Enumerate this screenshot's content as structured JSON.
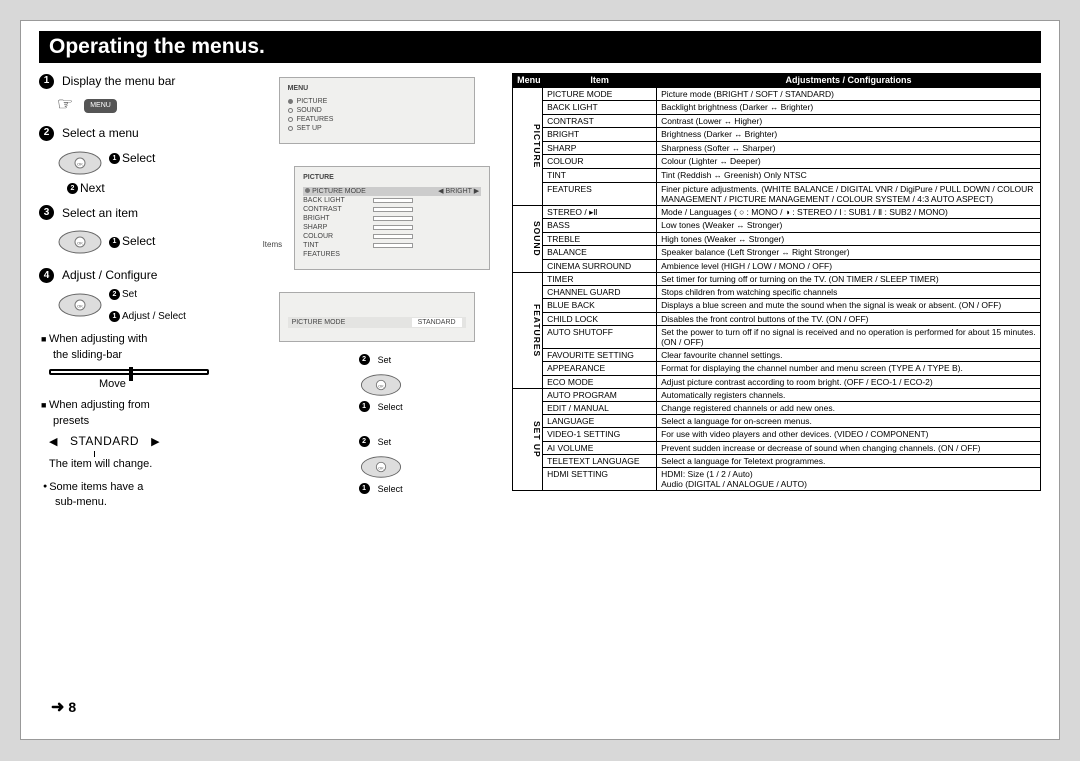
{
  "title": "Operating the menus.",
  "page_num": "8",
  "steps": {
    "s1": "Display the menu bar",
    "menu_chip": "MENU",
    "s2": "Select a menu",
    "s2a": "Select",
    "s2b": "Next",
    "s3": "Select an item",
    "s3a": "Select",
    "s4": "Adjust / Configure",
    "s4a": "Set",
    "s4b": "Adjust / Select",
    "n1a": "When adjusting with",
    "n1b": "the sliding-bar",
    "move": "Move",
    "n2a": "When adjusting from",
    "n2b": "presets",
    "preset": "STANDARD",
    "preset_note": "The item will change.",
    "n3a": "Some items have a",
    "n3b": "sub-menu."
  },
  "mid_labels": {
    "items": "Items",
    "set": "Set",
    "select": "Select"
  },
  "screen1": {
    "hdr": "MENU",
    "rows": [
      "PICTURE",
      "SOUND",
      "FEATURES",
      "SET UP"
    ]
  },
  "screen2": {
    "hdr": "PICTURE",
    "sel_item": "PICTURE MODE",
    "sel_val": "BRIGHT",
    "rows": [
      "BACK LIGHT",
      "CONTRAST",
      "BRIGHT",
      "SHARP",
      "COLOUR",
      "TINT",
      "FEATURES"
    ]
  },
  "screen3": {
    "item": "PICTURE MODE",
    "val": "STANDARD"
  },
  "table": {
    "headers": [
      "Menu",
      "Item",
      "Adjustments / Configurations"
    ],
    "groups": [
      {
        "name": "PICTURE",
        "rows": [
          [
            "PICTURE MODE",
            "Picture mode (BRIGHT / SOFT / STANDARD)"
          ],
          [
            "BACK LIGHT",
            "Backlight brightness (Darker ↔ Brighter)"
          ],
          [
            "CONTRAST",
            "Contrast (Lower ↔ Higher)"
          ],
          [
            "BRIGHT",
            "Brightness (Darker ↔ Brighter)"
          ],
          [
            "SHARP",
            "Sharpness (Softer ↔ Sharper)"
          ],
          [
            "COLOUR",
            "Colour (Lighter ↔ Deeper)"
          ],
          [
            "TINT",
            "Tint (Reddish ↔ Greenish) Only NTSC"
          ],
          [
            "FEATURES",
            "Finer picture adjustments. (WHITE BALANCE / DIGITAL VNR / DigiPure / PULL DOWN / COLOUR MANAGEMENT / PICTURE MANAGEMENT / COLOUR SYSTEM / 4:3 AUTO ASPECT)"
          ]
        ]
      },
      {
        "name": "SOUND",
        "rows": [
          [
            "STEREO / ▸Ⅱ",
            "Mode / Languages ( ○ : MONO / ◑ : STEREO / Ⅰ : SUB1 / Ⅱ : SUB2 / MONO)"
          ],
          [
            "BASS",
            "Low tones (Weaker ↔ Stronger)"
          ],
          [
            "TREBLE",
            "High tones (Weaker ↔ Stronger)"
          ],
          [
            "BALANCE",
            "Speaker balance (Left Stronger ↔ Right Stronger)"
          ],
          [
            "CINEMA SURROUND",
            "Ambience level (HIGH / LOW / MONO / OFF)"
          ]
        ]
      },
      {
        "name": "FEATURES",
        "rows": [
          [
            "TIMER",
            "Set timer for turning off or turning on the TV. (ON TIMER / SLEEP TIMER)"
          ],
          [
            "CHANNEL GUARD",
            "Stops children from watching specific channels"
          ],
          [
            "BLUE BACK",
            "Displays a blue screen and mute the sound when the signal is weak or absent. (ON / OFF)"
          ],
          [
            "CHILD LOCK",
            "Disables the front control buttons of the TV. (ON / OFF)"
          ],
          [
            "AUTO SHUTOFF",
            "Set the power to turn off if no signal is received and no operation is performed for about 15 minutes. (ON / OFF)"
          ],
          [
            "FAVOURITE SETTING",
            "Clear favourite channel settings."
          ],
          [
            "APPEARANCE",
            "Format for displaying the channel number and menu screen (TYPE A / TYPE B)."
          ],
          [
            "ECO MODE",
            "Adjust picture contrast according to room bright. (OFF / ECO-1 / ECO-2)"
          ]
        ]
      },
      {
        "name": "SET UP",
        "rows": [
          [
            "AUTO PROGRAM",
            "Automatically registers channels."
          ],
          [
            "EDIT / MANUAL",
            "Change registered channels or add new ones."
          ],
          [
            "LANGUAGE",
            "Select a language for on-screen menus."
          ],
          [
            "VIDEO-1 SETTING",
            "For use with video players and other devices. (VIDEO / COMPONENT)"
          ],
          [
            "AI VOLUME",
            "Prevent sudden increase or decrease of sound when changing channels. (ON / OFF)"
          ],
          [
            "TELETEXT LANGUAGE",
            "Select a language for Teletext programmes."
          ],
          [
            "HDMI SETTING",
            "HDMI: Size (1 / 2 / Auto)\nAudio (DIGITAL / ANALOGUE / AUTO)"
          ]
        ]
      }
    ]
  }
}
